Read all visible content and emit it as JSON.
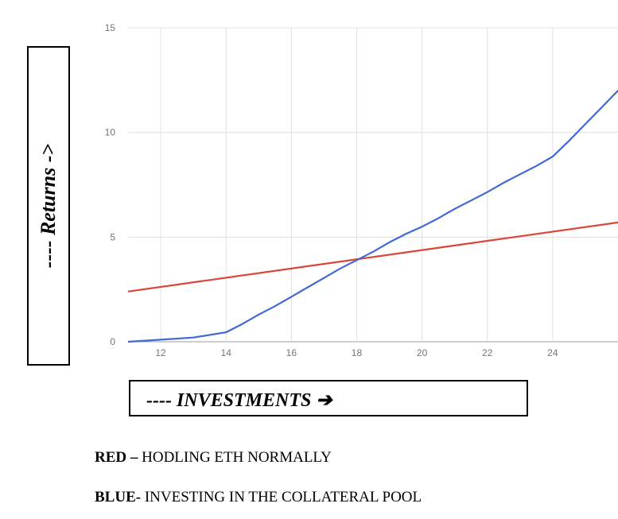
{
  "chart_data": {
    "type": "line",
    "title": "",
    "xlabel": "---- INVESTMENTS  ➔",
    "ylabel": "---- Returns  ->",
    "xlim": [
      11,
      26
    ],
    "ylim": [
      0,
      15
    ],
    "x_ticks": [
      "12",
      "14",
      "16",
      "18",
      "20",
      "22",
      "24"
    ],
    "y_ticks": [
      "0",
      "5",
      "10",
      "15"
    ],
    "grid": true,
    "series": [
      {
        "color": "#db4437",
        "x": [
          11,
          26
        ],
        "y": [
          2.4,
          5.7
        ]
      },
      {
        "color": "#4169d4",
        "x": [
          11,
          12,
          13,
          14,
          14.5,
          15,
          15.5,
          16,
          16.5,
          17,
          17.5,
          18,
          18.5,
          19,
          19.5,
          20,
          20.5,
          21,
          21.5,
          22,
          22.5,
          23,
          23.5,
          24,
          24.5,
          25,
          25.5,
          26
        ],
        "y": [
          0,
          0.1,
          0.2,
          0.45,
          0.85,
          1.3,
          1.7,
          2.15,
          2.6,
          3.05,
          3.5,
          3.9,
          4.3,
          4.75,
          5.15,
          5.5,
          5.9,
          6.35,
          6.75,
          7.15,
          7.6,
          8.0,
          8.4,
          8.85,
          9.6,
          10.4,
          11.2,
          12.0
        ]
      }
    ]
  },
  "legend": {
    "red_key": "RED – ",
    "red_text": "HODLING ETH NORMALLY",
    "blue_key": "BLUE- ",
    "blue_text": "INVESTING IN THE COLLATERAL POOL"
  }
}
